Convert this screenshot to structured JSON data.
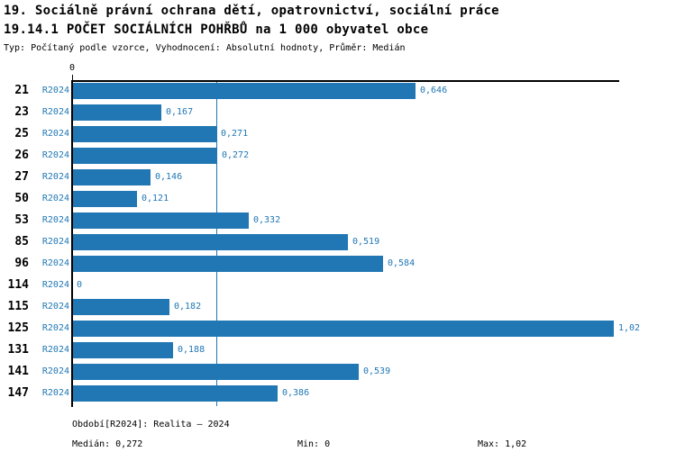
{
  "header": {
    "title_line1": "19. Sociálně právní ochrana dětí, opatrovnictví, sociální práce",
    "title_line2": "19.14.1 POČET SOCIÁLNÍCH POHŘBŮ na 1 000 obyvatel obce",
    "meta_line": "Typ: Počítaný podle vzorce, Vyhodnocení: Absolutní hodnoty, Průměr: Medián"
  },
  "chart_data": {
    "type": "bar",
    "orientation": "horizontal",
    "title": "19.14.1 POČET SOCIÁLNÍCH POHŘBŮ na 1 000 obyvatel obce",
    "categories": [
      "21",
      "23",
      "25",
      "26",
      "27",
      "50",
      "53",
      "85",
      "96",
      "114",
      "115",
      "125",
      "131",
      "141",
      "147"
    ],
    "series_label": "R2024",
    "values": [
      0.646,
      0.167,
      0.271,
      0.272,
      0.146,
      0.121,
      0.332,
      0.519,
      0.584,
      0,
      0.182,
      1.02,
      0.188,
      0.539,
      0.386
    ],
    "value_labels": [
      "0,646",
      "0,167",
      "0,271",
      "0,272",
      "0,146",
      "0,121",
      "0,332",
      "0,519",
      "0,584",
      "0",
      "0,182",
      "1,02",
      "0,188",
      "0,539",
      "0,386"
    ],
    "axis_tick_label": "0",
    "xlim": [
      0,
      1.032
    ],
    "median_value": 0.272,
    "grid": false,
    "legend_position": "none",
    "bar_color": "#2077b4",
    "median_line_color": "#2077b4",
    "label_color": "#2077b4"
  },
  "footer": {
    "period_label": "Období[R2024]: Realita – 2024",
    "median_label": "Medián: 0,272",
    "min_label": "Min: 0",
    "max_label": "Max: 1,02"
  }
}
